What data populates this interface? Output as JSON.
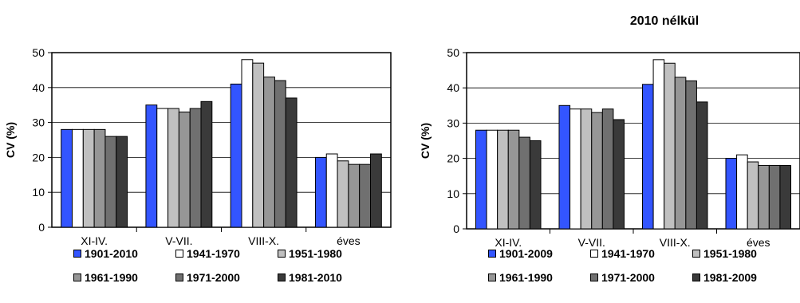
{
  "chart_data": [
    {
      "type": "bar",
      "title": "",
      "xlabel": "",
      "ylabel": "CV (%)",
      "ylim": [
        0,
        50
      ],
      "yticks": [
        "0",
        "10",
        "20",
        "30",
        "40",
        "50"
      ],
      "categories": [
        "XI-IV.",
        "V-VII.",
        "VIII-X.",
        "éves"
      ],
      "grid": true,
      "legend_position": "bottom",
      "series": [
        {
          "name": "1901-2010",
          "color": "#3355ff",
          "values": [
            28,
            35,
            41,
            20
          ]
        },
        {
          "name": "1941-1970",
          "color": "#ffffff",
          "values": [
            28,
            34,
            48,
            21
          ]
        },
        {
          "name": "1951-1980",
          "color": "#c0c0c0",
          "values": [
            28,
            34,
            47,
            19
          ]
        },
        {
          "name": "1961-1990",
          "color": "#969696",
          "values": [
            28,
            33,
            43,
            18
          ]
        },
        {
          "name": "1971-2000",
          "color": "#707070",
          "values": [
            26,
            34,
            42,
            18
          ]
        },
        {
          "name": "1981-2010",
          "color": "#3a3a3a",
          "values": [
            26,
            36,
            37,
            21
          ]
        }
      ]
    },
    {
      "type": "bar",
      "title": "2010 nélkül",
      "xlabel": "",
      "ylabel": "CV (%)",
      "ylim": [
        0,
        50
      ],
      "yticks": [
        "0",
        "10",
        "20",
        "30",
        "40",
        "50"
      ],
      "categories": [
        "XI-IV.",
        "V-VII.",
        "VIII-X.",
        "éves"
      ],
      "grid": true,
      "legend_position": "bottom",
      "series": [
        {
          "name": "1901-2009",
          "color": "#3355ff",
          "values": [
            28,
            35,
            41,
            20
          ]
        },
        {
          "name": "1941-1970",
          "color": "#ffffff",
          "values": [
            28,
            34,
            48,
            21
          ]
        },
        {
          "name": "1951-1980",
          "color": "#c0c0c0",
          "values": [
            28,
            34,
            47,
            19
          ]
        },
        {
          "name": "1961-1990",
          "color": "#969696",
          "values": [
            28,
            33,
            43,
            18
          ]
        },
        {
          "name": "1971-2000",
          "color": "#707070",
          "values": [
            26,
            34,
            42,
            18
          ]
        },
        {
          "name": "1981-2009",
          "color": "#3a3a3a",
          "values": [
            25,
            31,
            36,
            18
          ]
        }
      ]
    }
  ]
}
